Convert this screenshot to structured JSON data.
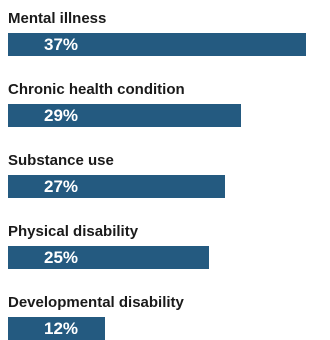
{
  "chart_data": {
    "type": "bar",
    "orientation": "horizontal",
    "categories": [
      "Mental illness",
      "Chronic health condition",
      "Substance use",
      "Physical disability",
      "Developmental disability"
    ],
    "values": [
      37,
      29,
      27,
      25,
      12
    ],
    "value_labels": [
      "37%",
      "29%",
      "27%",
      "25%",
      "12%"
    ],
    "unit": "%",
    "xlim": [
      0,
      40
    ],
    "grid": false,
    "legend": "none",
    "bar_color": "#245a80",
    "label_color": "#1a1a1a",
    "value_label_color": "#ffffff"
  }
}
